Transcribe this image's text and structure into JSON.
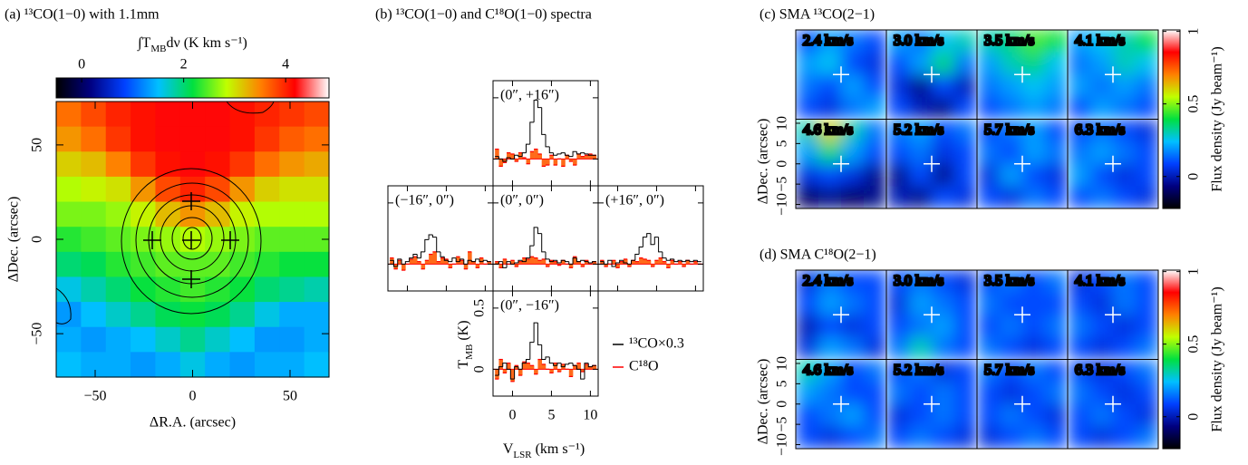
{
  "chart_data": [
    {
      "type": "heatmap",
      "title": "(a) ¹³CO(1−0) with 1.1mm",
      "colorbar_label": [
        "∫T",
        "MB",
        "dν (K km s⁻¹)"
      ],
      "colorbar_lim": [
        -0.5,
        4.85
      ],
      "colorbar_ticks": [
        0,
        2,
        4
      ],
      "colormap": [
        "#000000",
        "#000080",
        "#0040ff",
        "#00c0ff",
        "#00e040",
        "#c0ff00",
        "#ff8000",
        "#ff0000",
        "#ffffff"
      ],
      "xlabel": "ΔR.A. (arcsec)",
      "ylabel": "ΔDec. (arcsec)",
      "xlim": [
        -70,
        70
      ],
      "ylim": [
        -73,
        73
      ],
      "xticks": [
        {
          "value": -50,
          "label": "−50"
        },
        0,
        50
      ],
      "yticks": [
        {
          "value": -50,
          "label": "−50"
        },
        0,
        50
      ],
      "values": [
        [
          3.6,
          3.8,
          4.0,
          4.1,
          4.2,
          4.2,
          4.2,
          4.1,
          4.0,
          3.9,
          3.8
        ],
        [
          3.4,
          3.6,
          3.9,
          4.1,
          4.2,
          4.2,
          4.2,
          4.1,
          3.9,
          3.7,
          3.6
        ],
        [
          3.1,
          3.2,
          3.5,
          3.9,
          4.1,
          4.2,
          4.1,
          3.9,
          3.6,
          3.4,
          3.3
        ],
        [
          2.8,
          2.9,
          3.0,
          3.4,
          3.8,
          4.0,
          3.8,
          3.4,
          3.1,
          3.0,
          3.0
        ],
        [
          2.6,
          2.6,
          2.7,
          2.9,
          3.2,
          3.4,
          3.2,
          2.9,
          2.8,
          2.8,
          2.8
        ],
        [
          2.3,
          2.4,
          2.5,
          2.6,
          2.7,
          2.8,
          2.7,
          2.6,
          2.5,
          2.5,
          2.5
        ],
        [
          2.0,
          2.1,
          2.3,
          2.4,
          2.5,
          2.5,
          2.5,
          2.4,
          2.3,
          2.2,
          2.2
        ],
        [
          1.6,
          1.8,
          2.0,
          2.2,
          2.3,
          2.4,
          2.3,
          2.2,
          2.0,
          1.9,
          1.8
        ],
        [
          1.3,
          1.5,
          1.7,
          1.9,
          2.1,
          2.2,
          2.1,
          1.9,
          1.6,
          1.4,
          1.4
        ],
        [
          1.4,
          1.3,
          1.4,
          1.5,
          1.7,
          1.9,
          1.7,
          1.5,
          1.3,
          1.3,
          1.4
        ],
        [
          1.5,
          1.4,
          1.4,
          1.3,
          1.4,
          1.6,
          1.4,
          1.3,
          1.4,
          1.4,
          1.5
        ]
      ]
    },
    {
      "type": "spectra",
      "title": "(b) ¹³CO(1−0) and C¹⁸O(1−0) spectra",
      "xlabel": [
        "V",
        "LSR",
        " (km s⁻¹)"
      ],
      "ylabel": [
        "T",
        "MB",
        " (K)"
      ],
      "xlim": [
        -2.5,
        11
      ],
      "ylim": [
        -0.22,
        0.64
      ],
      "xticks": [
        0,
        5,
        10
      ],
      "yticks": [
        0,
        0.5
      ],
      "series": [
        {
          "name": "¹³CO×0.3",
          "color": "#000000"
        },
        {
          "name": "C¹⁸O",
          "color": "#ff0000",
          "fill": "#ff6a1a"
        }
      ],
      "x": [
        -2,
        -1.5,
        -1,
        -0.5,
        0,
        0.5,
        1,
        1.5,
        2,
        2.5,
        3,
        3.5,
        4,
        4.5,
        5,
        5.5,
        6,
        6.5,
        7,
        7.5,
        8,
        8.5,
        9,
        9.5,
        10,
        10.5
      ],
      "panels": [
        {
          "label": "(0″, +16″)",
          "position": "top",
          "values": [
            [
              0.02,
              0.0,
              -0.02,
              0.01,
              0.0,
              0.03,
              0.02,
              0.05,
              0.12,
              0.3,
              0.48,
              0.42,
              0.2,
              0.1,
              0.05,
              0.03,
              0.04,
              0.05,
              0.03,
              0.02,
              0.06,
              0.04,
              0.05,
              0.04,
              0.03,
              0.03
            ],
            [
              0.08,
              -0.06,
              -0.03,
              0.05,
              0.04,
              -0.02,
              0.05,
              0.01,
              -0.04,
              0.06,
              0.08,
              0.04,
              -0.06,
              -0.05,
              0.03,
              -0.05,
              0.0,
              -0.06,
              0.03,
              -0.02,
              -0.05,
              0.04,
              0.02,
              0.03,
              0.04,
              0.03
            ]
          ]
        },
        {
          "label": "(−16″, 0″)",
          "position": "left",
          "values": [
            [
              0.03,
              -0.02,
              0.04,
              0.0,
              0.02,
              0.05,
              0.08,
              0.05,
              0.1,
              0.2,
              0.24,
              0.22,
              0.1,
              0.06,
              0.03,
              0.02,
              0.05,
              0.02,
              0.04,
              0.0,
              0.03,
              0.02,
              0.04,
              0.02,
              0.03,
              0.02
            ],
            [
              0.05,
              -0.04,
              0.03,
              -0.05,
              0.0,
              0.04,
              0.06,
              0.02,
              -0.04,
              0.03,
              0.08,
              0.1,
              0.02,
              0.05,
              0.04,
              -0.03,
              0.0,
              0.06,
              0.03,
              -0.04,
              0.1,
              0.02,
              -0.03,
              0.05,
              0.0,
              0.02
            ]
          ]
        },
        {
          "label": "(0″, 0″)",
          "position": "center",
          "values": [
            [
              0.0,
              0.02,
              -0.03,
              0.02,
              0.0,
              0.01,
              0.03,
              0.02,
              0.05,
              0.15,
              0.3,
              0.25,
              0.1,
              0.04,
              0.02,
              0.03,
              0.01,
              0.03,
              0.02,
              0.0,
              0.05,
              0.02,
              0.03,
              0.02,
              0.01,
              0.02
            ],
            [
              0.02,
              -0.03,
              0.04,
              0.0,
              0.03,
              -0.02,
              0.02,
              0.05,
              0.04,
              0.06,
              0.05,
              0.03,
              0.04,
              -0.02,
              0.03,
              0.02,
              -0.01,
              0.03,
              0.0,
              -0.03,
              0.06,
              0.02,
              -0.02,
              0.03,
              0.0,
              0.02
            ]
          ]
        },
        {
          "label": "(+16″, 0″)",
          "position": "right",
          "values": [
            [
              0.02,
              0.0,
              0.03,
              -0.02,
              0.01,
              0.03,
              0.01,
              0.0,
              0.03,
              0.08,
              0.14,
              0.22,
              0.25,
              0.16,
              0.22,
              0.1,
              0.05,
              0.03,
              0.04,
              0.02,
              0.03,
              0.02,
              0.03,
              0.02,
              0.03,
              0.02
            ],
            [
              0.03,
              -0.02,
              0.0,
              0.03,
              -0.03,
              0.02,
              0.04,
              -0.02,
              0.03,
              0.02,
              0.05,
              0.04,
              0.03,
              -0.02,
              0.03,
              0.05,
              0.02,
              -0.03,
              0.03,
              0.0,
              0.02,
              -0.02,
              0.03,
              0.0,
              0.02,
              0.0
            ]
          ]
        },
        {
          "label": "(0″, −16″)",
          "position": "bottom",
          "values": [
            [
              -0.05,
              0.02,
              0.05,
              0.0,
              -0.08,
              0.02,
              0.0,
              0.05,
              0.08,
              0.22,
              0.38,
              0.2,
              0.08,
              0.1,
              0.05,
              0.03,
              0.05,
              0.02,
              0.04,
              0.05,
              0.03,
              0.0,
              -0.08,
              0.05,
              0.02,
              0.03
            ],
            [
              -0.08,
              0.08,
              -0.03,
              0.05,
              -0.1,
              0.03,
              -0.05,
              0.06,
              0.05,
              0.03,
              -0.04,
              0.08,
              0.04,
              0.0,
              -0.03,
              0.05,
              -0.02,
              0.04,
              0.0,
              -0.06,
              0.03,
              0.05,
              -0.02,
              0.04,
              0.02,
              0.03
            ]
          ]
        }
      ]
    },
    {
      "type": "channelmap",
      "title": "(c) SMA ¹³CO(2−1)",
      "ylabel": "ΔDec. (arcsec)",
      "ylim": [
        -11,
        11
      ],
      "yticks": [
        {
          "value": -10,
          "label": "−10"
        },
        {
          "value": -5,
          "label": "−5"
        },
        0,
        5,
        10
      ],
      "colorbar_label": "Flux density (Jy beam⁻¹)",
      "colorbar_lim": [
        -0.22,
        1.01
      ],
      "colorbar_ticks": [
        0,
        0.5,
        1
      ],
      "colormap": [
        "#000000",
        "#000080",
        "#0040ff",
        "#00c0ff",
        "#00e040",
        "#c0ff00",
        "#ff8000",
        "#ff0000",
        "#ffffff"
      ],
      "channels": [
        {
          "label": "2.4 km/s",
          "values": [
            [
              0.1,
              0.2,
              0.15,
              0.1
            ],
            [
              0.2,
              0.25,
              0.1,
              0.05
            ],
            [
              0.15,
              0.1,
              0.2,
              0.1
            ],
            [
              0.1,
              0.05,
              0.15,
              0.2
            ]
          ]
        },
        {
          "label": "3.0 km/s",
          "values": [
            [
              0.2,
              0.15,
              0.25,
              0.3
            ],
            [
              0.1,
              0.2,
              0.35,
              0.15
            ],
            [
              0.05,
              -0.05,
              0.1,
              0.0
            ],
            [
              0.1,
              0.0,
              -0.05,
              0.1
            ]
          ]
        },
        {
          "label": "3.5 km/s",
          "values": [
            [
              0.3,
              0.35,
              0.45,
              0.4
            ],
            [
              0.2,
              0.3,
              0.35,
              0.25
            ],
            [
              0.15,
              0.2,
              0.25,
              0.2
            ],
            [
              0.1,
              0.15,
              0.2,
              0.15
            ]
          ]
        },
        {
          "label": "4.1 km/s",
          "values": [
            [
              0.2,
              0.25,
              0.3,
              0.4
            ],
            [
              0.15,
              0.2,
              0.3,
              0.25
            ],
            [
              0.2,
              0.15,
              0.2,
              0.15
            ],
            [
              0.1,
              0.2,
              0.15,
              0.1
            ]
          ]
        },
        {
          "label": "4.6 km/s",
          "values": [
            [
              0.3,
              0.6,
              0.3,
              0.15
            ],
            [
              0.2,
              0.35,
              0.2,
              0.1
            ],
            [
              0.05,
              0.1,
              0.05,
              -0.05
            ],
            [
              -0.1,
              -0.05,
              -0.1,
              -0.05
            ]
          ]
        },
        {
          "label": "5.2 km/s",
          "values": [
            [
              0.15,
              0.2,
              0.1,
              0.15
            ],
            [
              0.1,
              0.15,
              0.05,
              0.1
            ],
            [
              -0.05,
              0.1,
              -0.05,
              0.1
            ],
            [
              0.0,
              -0.05,
              0.1,
              0.05
            ]
          ]
        },
        {
          "label": "5.7 km/s",
          "values": [
            [
              0.1,
              0.15,
              0.2,
              0.1
            ],
            [
              0.15,
              0.1,
              0.2,
              0.15
            ],
            [
              0.05,
              0.2,
              0.1,
              0.05
            ],
            [
              0.1,
              0.05,
              0.15,
              0.1
            ]
          ]
        },
        {
          "label": "6.3 km/s",
          "values": [
            [
              0.1,
              0.15,
              0.1,
              0.05
            ],
            [
              0.15,
              0.2,
              0.15,
              0.1
            ],
            [
              0.2,
              0.1,
              0.05,
              0.1
            ],
            [
              0.1,
              0.15,
              0.1,
              0.05
            ]
          ]
        }
      ]
    },
    {
      "type": "channelmap",
      "title": "(d) SMA C¹⁸O(2−1)",
      "ylabel": "ΔDec. (arcsec)",
      "ylim": [
        -11,
        11
      ],
      "yticks": [
        {
          "value": -10,
          "label": "−10"
        },
        {
          "value": -5,
          "label": "−5"
        },
        0,
        5,
        10
      ],
      "colorbar_label": "Flux density (Jy beam⁻¹)",
      "colorbar_lim": [
        -0.22,
        1.01
      ],
      "colorbar_ticks": [
        0,
        0.5,
        1
      ],
      "colormap": [
        "#000000",
        "#000080",
        "#0040ff",
        "#00c0ff",
        "#00e040",
        "#c0ff00",
        "#ff8000",
        "#ff0000",
        "#ffffff"
      ],
      "channels": [
        {
          "label": "2.4 km/s",
          "values": [
            [
              0.05,
              0.15,
              0.1,
              0.1
            ],
            [
              0.1,
              0.2,
              0.15,
              0.1
            ],
            [
              0.0,
              0.1,
              0.05,
              0.1
            ],
            [
              0.05,
              0.2,
              0.15,
              0.05
            ]
          ]
        },
        {
          "label": "3.0 km/s",
          "values": [
            [
              0.1,
              0.15,
              0.1,
              0.05
            ],
            [
              0.05,
              0.2,
              0.15,
              0.1
            ],
            [
              0.1,
              0.15,
              0.2,
              0.1
            ],
            [
              0.15,
              0.3,
              0.15,
              0.1
            ]
          ]
        },
        {
          "label": "3.5 km/s",
          "values": [
            [
              0.1,
              0.15,
              0.1,
              0.15
            ],
            [
              0.15,
              0.1,
              0.1,
              0.1
            ],
            [
              0.1,
              0.15,
              0.1,
              0.15
            ],
            [
              0.15,
              0.1,
              0.05,
              0.1
            ]
          ]
        },
        {
          "label": "4.1 km/s",
          "values": [
            [
              0.05,
              0.1,
              0.15,
              0.1
            ],
            [
              0.1,
              0.05,
              0.15,
              0.1
            ],
            [
              0.15,
              0.1,
              0.05,
              0.1
            ],
            [
              0.1,
              0.05,
              0.1,
              0.15
            ]
          ]
        },
        {
          "label": "4.6 km/s",
          "values": [
            [
              0.3,
              0.2,
              0.1,
              0.15
            ],
            [
              0.2,
              0.15,
              0.1,
              0.1
            ],
            [
              0.1,
              0.15,
              0.2,
              0.1
            ],
            [
              0.1,
              0.05,
              0.1,
              0.15
            ]
          ]
        },
        {
          "label": "5.2 km/s",
          "values": [
            [
              0.1,
              0.15,
              0.05,
              0.1
            ],
            [
              0.15,
              0.1,
              0.15,
              0.1
            ],
            [
              0.05,
              0.1,
              0.15,
              0.1
            ],
            [
              0.1,
              0.15,
              0.1,
              0.05
            ]
          ]
        },
        {
          "label": "5.7 km/s",
          "values": [
            [
              0.15,
              0.1,
              0.15,
              0.1
            ],
            [
              0.1,
              0.05,
              0.1,
              0.15
            ],
            [
              0.1,
              0.15,
              0.1,
              0.05
            ],
            [
              0.05,
              0.1,
              0.15,
              0.1
            ]
          ]
        },
        {
          "label": "6.3 km/s",
          "values": [
            [
              0.1,
              0.05,
              0.1,
              0.15
            ],
            [
              0.15,
              0.1,
              0.05,
              0.1
            ],
            [
              0.1,
              0.15,
              0.1,
              0.05
            ],
            [
              0.1,
              0.05,
              0.1,
              0.15
            ]
          ]
        }
      ]
    }
  ]
}
